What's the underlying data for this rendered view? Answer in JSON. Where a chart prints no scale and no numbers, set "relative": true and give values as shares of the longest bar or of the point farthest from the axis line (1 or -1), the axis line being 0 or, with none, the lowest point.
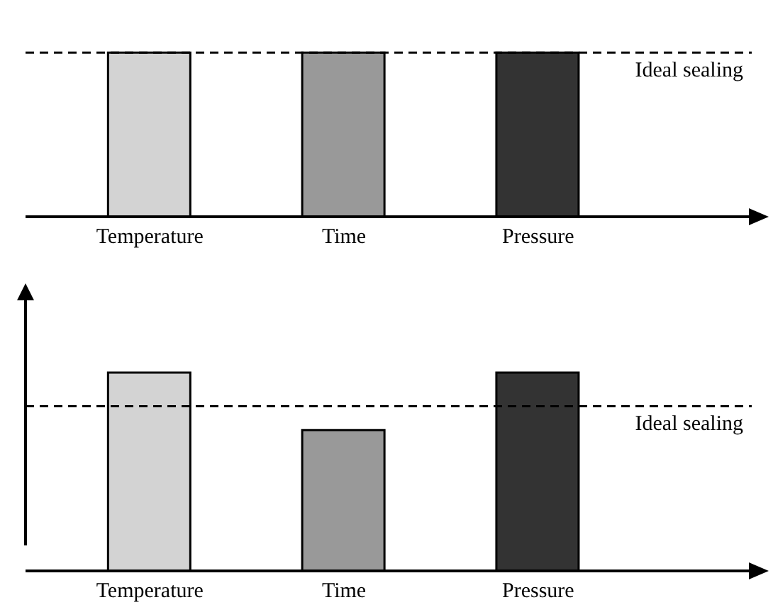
{
  "chart_data": [
    {
      "type": "bar",
      "categories": [
        "Temperature",
        "Time",
        "Pressure"
      ],
      "values": [
        1,
        1,
        1
      ],
      "colors": [
        "#d3d3d3",
        "#999999",
        "#333333"
      ],
      "relative": true,
      "tick_labels": "x",
      "ref_lines": [
        {
          "axis": "y",
          "value": 1,
          "label": "Ideal sealing",
          "color": "#000000",
          "line_style": "dashed"
        }
      ]
    },
    {
      "type": "bar",
      "categories": [
        "Temperature",
        "Time",
        "Pressure"
      ],
      "values": [
        1,
        0.71,
        1
      ],
      "colors": [
        "#d3d3d3",
        "#999999",
        "#333333"
      ],
      "relative": true,
      "tick_labels": "x",
      "ref_lines": [
        {
          "axis": "y",
          "value": 0.83,
          "label": "Ideal sealing",
          "color": "#000000",
          "line_style": "dashed"
        }
      ]
    }
  ]
}
